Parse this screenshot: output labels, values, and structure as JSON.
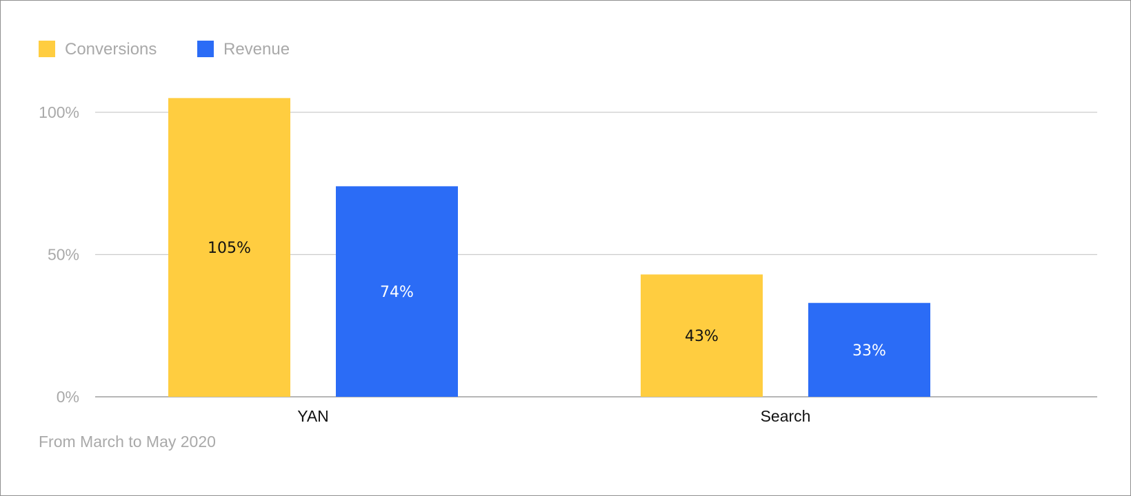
{
  "chart_data": {
    "type": "bar",
    "categories": [
      "YAN",
      "Search"
    ],
    "series": [
      {
        "name": "Conversions",
        "color": "#FFCD40",
        "label_color": "#111111",
        "values": [
          105,
          43
        ],
        "labels": [
          "105%",
          "43%"
        ]
      },
      {
        "name": "Revenue",
        "color": "#2B6CF6",
        "label_color": "#FFFFFF",
        "values": [
          74,
          33
        ],
        "labels": [
          "74%",
          "33%"
        ]
      }
    ],
    "y_ticks": [
      {
        "value": 0,
        "label": "0%"
      },
      {
        "value": 50,
        "label": "50%"
      },
      {
        "value": 100,
        "label": "100%"
      }
    ],
    "ylim": [
      0,
      112
    ],
    "grid": true,
    "gridline_color": "#cccccc",
    "legend_position": "top-left",
    "footnote": "From March to May 2020"
  }
}
